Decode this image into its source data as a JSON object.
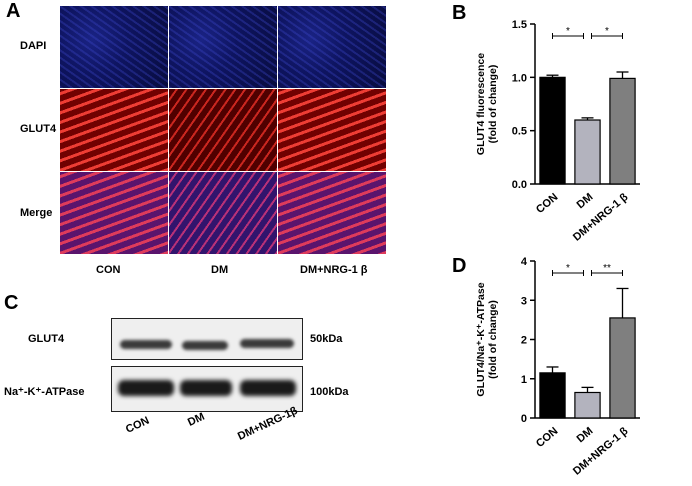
{
  "panels": {
    "A": "A",
    "B": "B",
    "C": "C",
    "D": "D"
  },
  "panel_a": {
    "rows": [
      "DAPI",
      "GLUT4",
      "Merge"
    ],
    "columns": [
      "CON",
      "DM",
      "DM+NRG-1 β"
    ]
  },
  "panel_c": {
    "blots": [
      {
        "name": "GLUT4",
        "size": "50kDa"
      },
      {
        "name": "Na⁺-K⁺-ATPase",
        "size": "100kDa"
      }
    ],
    "lanes": [
      "CON",
      "DM",
      "DM+NRG-1β"
    ]
  },
  "chart_data": [
    {
      "id": "B",
      "type": "bar",
      "ylabel": "GLUT4 fluorescence (fold of change)",
      "ylabel_lines": [
        "GLUT4 fluorescence",
        "(fold of change)"
      ],
      "categories": [
        "CON",
        "DM",
        "DM+NRG-1 β"
      ],
      "values": [
        1.0,
        0.6,
        0.99
      ],
      "errors": [
        0.02,
        0.02,
        0.06
      ],
      "colors": [
        "#000000",
        "#b3b3be",
        "#7f7f7f"
      ],
      "ylim": [
        0,
        1.5
      ],
      "yticks": [
        "0.0",
        "0.5",
        "1.0",
        "1.5"
      ],
      "significance": [
        {
          "from": 0,
          "to": 1,
          "label": "*"
        },
        {
          "from": 1,
          "to": 2,
          "label": "*"
        }
      ]
    },
    {
      "id": "D",
      "type": "bar",
      "ylabel": "GLUT4/Na⁺-K⁺-ATPase (fold of change)",
      "ylabel_lines": [
        "GLUT4/Na⁺-K⁺-ATPase",
        "(fold of change)"
      ],
      "categories": [
        "CON",
        "DM",
        "DM+NRG-1 β"
      ],
      "values": [
        1.15,
        0.65,
        2.55
      ],
      "errors": [
        0.15,
        0.13,
        0.75
      ],
      "colors": [
        "#000000",
        "#b3b3be",
        "#7f7f7f"
      ],
      "ylim": [
        0,
        4
      ],
      "yticks": [
        "0",
        "1",
        "2",
        "3",
        "4"
      ],
      "significance": [
        {
          "from": 0,
          "to": 1,
          "label": "*"
        },
        {
          "from": 1,
          "to": 2,
          "label": "**"
        }
      ]
    }
  ]
}
